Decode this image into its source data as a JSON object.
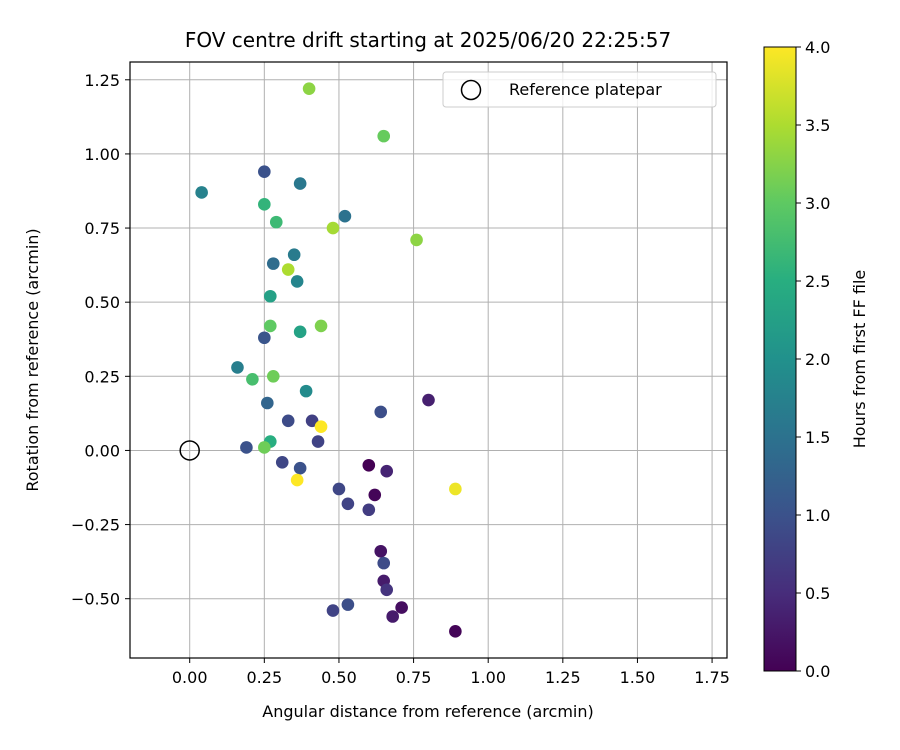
{
  "chart_data": {
    "type": "scatter",
    "title": "FOV centre drift starting at 2025/06/20 22:25:57",
    "xlabel": "Angular distance from reference (arcmin)",
    "ylabel": "Rotation from reference (arcmin)",
    "xlim": [
      -0.2,
      1.8
    ],
    "ylim": [
      -0.7,
      1.31
    ],
    "xticks": [
      0.0,
      0.25,
      0.5,
      0.75,
      1.0,
      1.25,
      1.5,
      1.75
    ],
    "xtick_labels": [
      "0.00",
      "0.25",
      "0.50",
      "0.75",
      "1.00",
      "1.25",
      "1.50",
      "1.75"
    ],
    "yticks": [
      -0.5,
      -0.25,
      0.0,
      0.25,
      0.5,
      0.75,
      1.0,
      1.25
    ],
    "ytick_labels": [
      "−0.50",
      "−0.25",
      "0.00",
      "0.25",
      "0.50",
      "0.75",
      "1.00",
      "1.25"
    ],
    "grid": true,
    "colormap": "viridis",
    "colorbar": {
      "label": "Hours from first FF file",
      "range": [
        0.0,
        4.0
      ],
      "ticks": [
        0.0,
        0.5,
        1.0,
        1.5,
        2.0,
        2.5,
        3.0,
        3.5,
        4.0
      ],
      "tick_labels": [
        "0.0",
        "0.5",
        "1.0",
        "1.5",
        "2.0",
        "2.5",
        "3.0",
        "3.5",
        "4.0"
      ]
    },
    "legend": {
      "position": "top-right",
      "entries": [
        "Reference platepar"
      ]
    },
    "reference_point": {
      "label": "Reference platepar",
      "x": 0.0,
      "y": 0.0
    },
    "points": [
      {
        "x": 0.6,
        "y": -0.05,
        "c": 0.0
      },
      {
        "x": 0.62,
        "y": -0.15,
        "c": 0.05
      },
      {
        "x": 0.64,
        "y": -0.34,
        "c": 0.2
      },
      {
        "x": 0.65,
        "y": -0.44,
        "c": 0.3
      },
      {
        "x": 0.68,
        "y": -0.56,
        "c": 0.3
      },
      {
        "x": 0.71,
        "y": -0.53,
        "c": 0.15
      },
      {
        "x": 0.89,
        "y": -0.61,
        "c": 0.05
      },
      {
        "x": 0.66,
        "y": -0.47,
        "c": 0.6
      },
      {
        "x": 0.66,
        "y": -0.07,
        "c": 0.4
      },
      {
        "x": 0.8,
        "y": 0.17,
        "c": 0.35
      },
      {
        "x": 0.65,
        "y": -0.38,
        "c": 0.9
      },
      {
        "x": 0.6,
        "y": -0.2,
        "c": 0.7
      },
      {
        "x": 0.53,
        "y": -0.18,
        "c": 0.8
      },
      {
        "x": 0.5,
        "y": -0.13,
        "c": 0.85
      },
      {
        "x": 0.48,
        "y": -0.54,
        "c": 0.8
      },
      {
        "x": 0.53,
        "y": -0.52,
        "c": 0.95
      },
      {
        "x": 0.64,
        "y": 0.13,
        "c": 0.95
      },
      {
        "x": 0.43,
        "y": 0.03,
        "c": 0.8
      },
      {
        "x": 0.41,
        "y": 0.1,
        "c": 0.75
      },
      {
        "x": 0.37,
        "y": -0.06,
        "c": 1.0
      },
      {
        "x": 0.31,
        "y": -0.04,
        "c": 0.85
      },
      {
        "x": 0.33,
        "y": 0.1,
        "c": 0.9
      },
      {
        "x": 0.19,
        "y": 0.01,
        "c": 1.0
      },
      {
        "x": 0.25,
        "y": 0.94,
        "c": 1.0
      },
      {
        "x": 0.25,
        "y": 0.38,
        "c": 1.05
      },
      {
        "x": 0.52,
        "y": 0.79,
        "c": 1.5
      },
      {
        "x": 0.37,
        "y": 0.9,
        "c": 1.6
      },
      {
        "x": 0.28,
        "y": 0.63,
        "c": 1.4
      },
      {
        "x": 0.26,
        "y": 0.16,
        "c": 1.3
      },
      {
        "x": 0.04,
        "y": 0.87,
        "c": 1.75
      },
      {
        "x": 0.35,
        "y": 0.66,
        "c": 1.65
      },
      {
        "x": 0.36,
        "y": 0.57,
        "c": 1.8
      },
      {
        "x": 0.16,
        "y": 0.28,
        "c": 1.7
      },
      {
        "x": 0.39,
        "y": 0.2,
        "c": 1.9
      },
      {
        "x": 0.27,
        "y": 0.52,
        "c": 2.25
      },
      {
        "x": 0.37,
        "y": 0.4,
        "c": 2.3
      },
      {
        "x": 0.27,
        "y": 0.03,
        "c": 2.5
      },
      {
        "x": 0.25,
        "y": 0.83,
        "c": 2.6
      },
      {
        "x": 0.21,
        "y": 0.24,
        "c": 2.8
      },
      {
        "x": 0.29,
        "y": 0.77,
        "c": 2.7
      },
      {
        "x": 0.27,
        "y": 0.42,
        "c": 3.0
      },
      {
        "x": 0.28,
        "y": 0.25,
        "c": 3.1
      },
      {
        "x": 0.25,
        "y": 0.01,
        "c": 3.1
      },
      {
        "x": 0.65,
        "y": 1.06,
        "c": 3.05
      },
      {
        "x": 0.48,
        "y": 0.75,
        "c": 3.45
      },
      {
        "x": 0.33,
        "y": 0.61,
        "c": 3.5
      },
      {
        "x": 0.44,
        "y": 0.42,
        "c": 3.2
      },
      {
        "x": 0.4,
        "y": 1.22,
        "c": 3.3
      },
      {
        "x": 0.76,
        "y": 0.71,
        "c": 3.3
      },
      {
        "x": 0.44,
        "y": 0.08,
        "c": 4.0
      },
      {
        "x": 0.36,
        "y": -0.1,
        "c": 4.0
      },
      {
        "x": 0.89,
        "y": -0.13,
        "c": 3.9
      }
    ]
  }
}
